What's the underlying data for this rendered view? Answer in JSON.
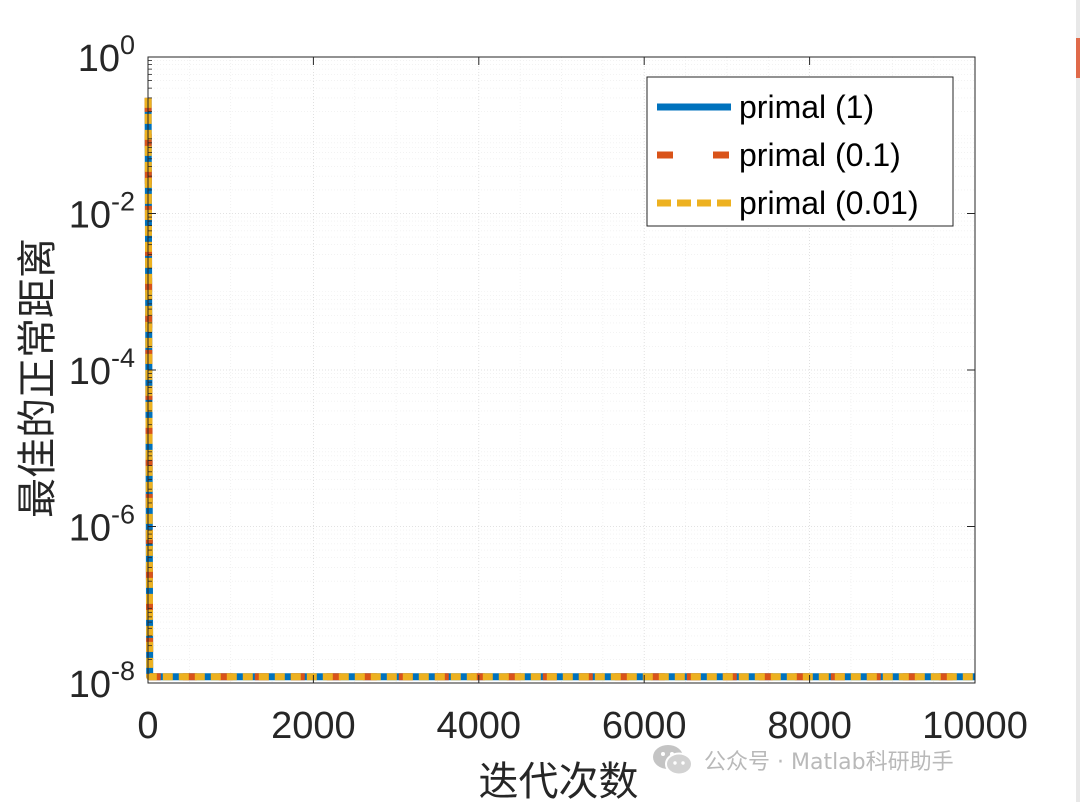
{
  "chart_data": {
    "type": "line",
    "title": "",
    "xlabel": "迭代次数",
    "ylabel": "最佳的正常距离",
    "xlim": [
      0,
      10000
    ],
    "ylim": [
      1e-08,
      1
    ],
    "yscale": "log",
    "grid": true,
    "minor_grid": true,
    "legend_position": "top-right",
    "x_ticks": [
      0,
      2000,
      4000,
      6000,
      8000,
      10000
    ],
    "x_tick_labels": [
      "0",
      "2000",
      "4000",
      "6000",
      "8000",
      "10000"
    ],
    "y_ticks": [
      1e-08,
      1e-06,
      0.0001,
      0.01,
      1
    ],
    "y_tick_labels": [
      {
        "base": "10",
        "exp": "-8"
      },
      {
        "base": "10",
        "exp": "-6"
      },
      {
        "base": "10",
        "exp": "-4"
      },
      {
        "base": "10",
        "exp": "-2"
      },
      {
        "base": "10",
        "exp": "0"
      }
    ],
    "series": [
      {
        "name": "primal (1)",
        "color": "#0072BD",
        "style": "solid",
        "x": [
          1,
          20,
          40,
          10000
        ],
        "y": [
          0.3,
          1.2e-08,
          1.2e-08,
          1.2e-08
        ]
      },
      {
        "name": "primal (0.1)",
        "color": "#D95319",
        "style": "dash",
        "x": [
          1,
          20,
          40,
          10000
        ],
        "y": [
          0.3,
          1.2e-08,
          1.2e-08,
          1.2e-08
        ]
      },
      {
        "name": "primal (0.01)",
        "color": "#EDB120",
        "style": "dashdot",
        "x": [
          1,
          20,
          40,
          10000
        ],
        "y": [
          0.3,
          1.2e-08,
          1.2e-08,
          1.2e-08
        ]
      }
    ]
  },
  "watermark": {
    "icon": "wechat-icon",
    "text": "公众号 · Matlab科研助手"
  }
}
